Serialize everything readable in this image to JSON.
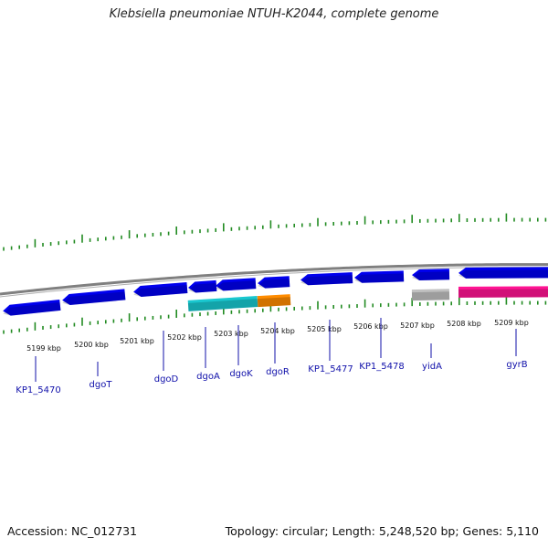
{
  "title": "Klebsiella pneumoniae NTUH-K2044, complete genome",
  "footer": {
    "accession": "Accession: NC_012731",
    "topology": "Topology: circular; Length: 5,248,520 bp; Genes: 5,110"
  },
  "colors": {
    "gene_default": "#0000ee",
    "gene_dgoA": "#19c7cf",
    "gene_dgoK": "#19c7cf",
    "gene_dgoR": "#ff8c00",
    "gene_yidA": "#c0c0c0",
    "gene_gyrB": "#ff1493",
    "tick": "#228b22",
    "backbone": "#808080",
    "label": "#1010aa"
  },
  "scale_labels": [
    "5199 kbp",
    "5200 kbp",
    "5201 kbp",
    "5202 kbp",
    "5203 kbp",
    "5204 kbp",
    "5205 kbp",
    "5206 kbp",
    "5207 kbp",
    "5208 kbp",
    "5209 kbp"
  ],
  "gene_labels": [
    "KP1_5470",
    "dgoT",
    "dgoD",
    "dgoA",
    "dgoK",
    "dgoR",
    "KP1_5477",
    "KP1_5478",
    "yidA",
    "gyrB"
  ]
}
